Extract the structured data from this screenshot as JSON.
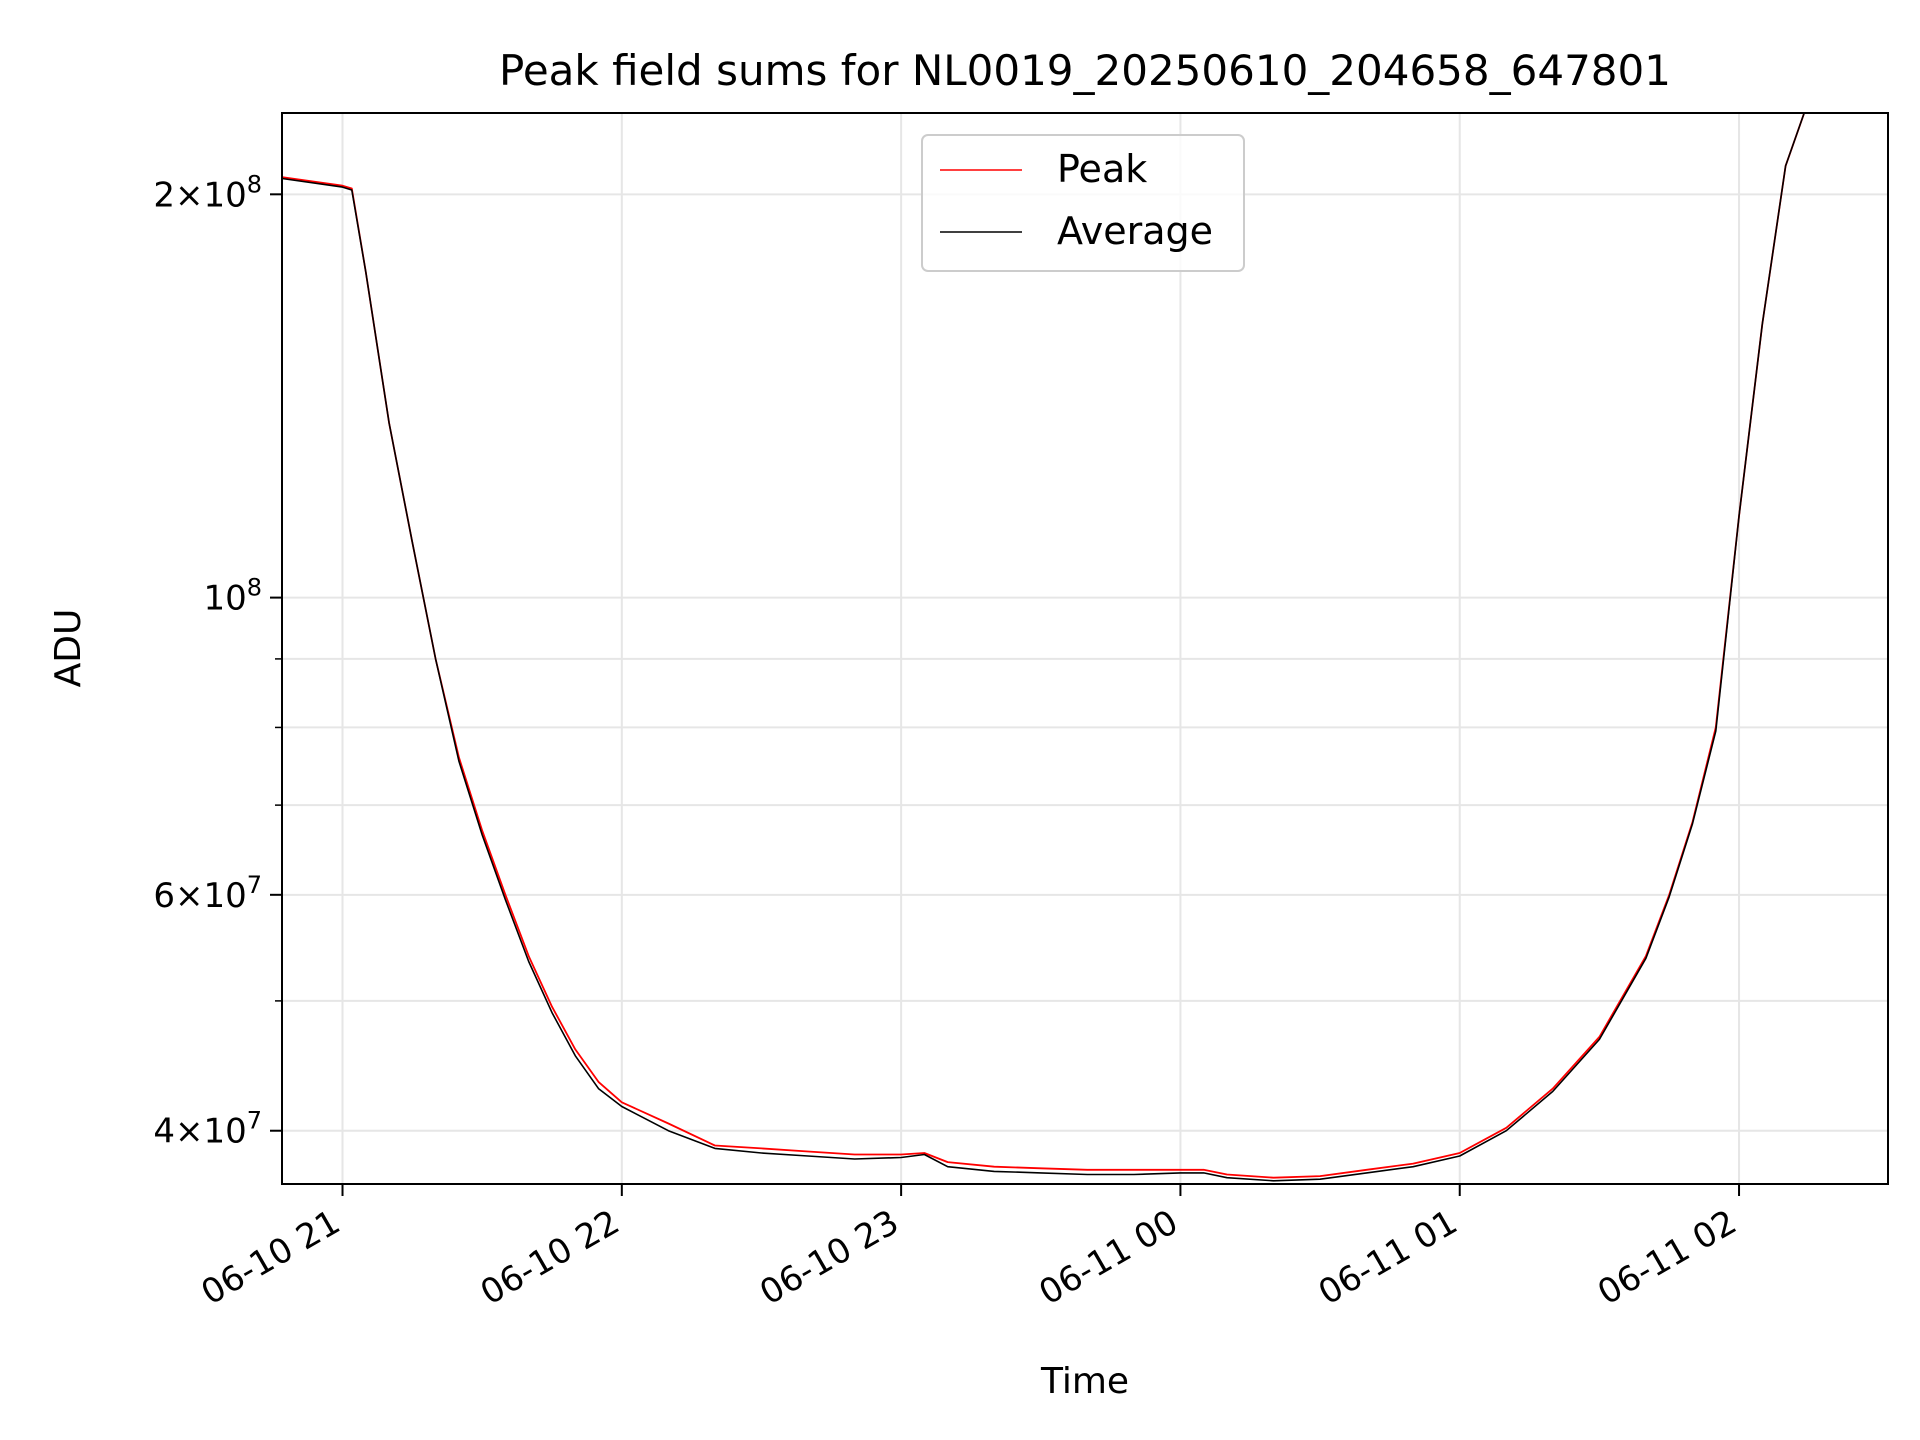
{
  "chart_data": {
    "type": "line",
    "title": "Peak field sums for NL0019_20250610_204658_647801",
    "xlabel": "Time",
    "ylabel": "ADU",
    "xscale": "time",
    "yscale": "log",
    "xlim": [
      "2025-06-10 20:47",
      "2025-06-11 02:32"
    ],
    "ylim": [
      36500000,
      230000000
    ],
    "grid": true,
    "legend": {
      "location": "upper center",
      "entries": [
        "Peak",
        "Average"
      ]
    },
    "xticks": [
      {
        "value": "2025-06-10 21:00",
        "label": "06-10 21"
      },
      {
        "value": "2025-06-10 22:00",
        "label": "06-10 22"
      },
      {
        "value": "2025-06-10 23:00",
        "label": "06-10 23"
      },
      {
        "value": "2025-06-11 00:00",
        "label": "06-11 00"
      },
      {
        "value": "2025-06-11 01:00",
        "label": "06-11 01"
      },
      {
        "value": "2025-06-11 02:00",
        "label": "06-11 02"
      }
    ],
    "yticks": [
      {
        "value": 40000000,
        "mantissa": "4",
        "exponent": "7"
      },
      {
        "value": 60000000,
        "mantissa": "6",
        "exponent": "7"
      },
      {
        "value": 100000000,
        "mantissa": "",
        "exponent": "8"
      },
      {
        "value": 200000000,
        "mantissa": "2",
        "exponent": "8"
      }
    ],
    "series": [
      {
        "name": "Peak",
        "color": "#ff0000",
        "x": [
          "2025-06-10 20:47",
          "2025-06-10 21:00",
          "2025-06-10 21:02",
          "2025-06-10 21:05",
          "2025-06-10 21:10",
          "2025-06-10 21:15",
          "2025-06-10 21:20",
          "2025-06-10 21:25",
          "2025-06-10 21:30",
          "2025-06-10 21:35",
          "2025-06-10 21:40",
          "2025-06-10 21:45",
          "2025-06-10 21:50",
          "2025-06-10 21:55",
          "2025-06-10 22:00",
          "2025-06-10 22:10",
          "2025-06-10 22:20",
          "2025-06-10 22:30",
          "2025-06-10 22:40",
          "2025-06-10 22:50",
          "2025-06-10 23:00",
          "2025-06-10 23:05",
          "2025-06-10 23:10",
          "2025-06-10 23:20",
          "2025-06-10 23:30",
          "2025-06-10 23:40",
          "2025-06-10 23:50",
          "2025-06-11 00:00",
          "2025-06-11 00:05",
          "2025-06-11 00:10",
          "2025-06-11 00:20",
          "2025-06-11 00:30",
          "2025-06-11 00:40",
          "2025-06-11 00:50",
          "2025-06-11 01:00",
          "2025-06-11 01:10",
          "2025-06-11 01:20",
          "2025-06-11 01:30",
          "2025-06-11 01:40",
          "2025-06-11 01:45",
          "2025-06-11 01:50",
          "2025-06-11 01:55",
          "2025-06-11 02:00",
          "2025-06-11 02:05",
          "2025-06-11 02:10",
          "2025-06-11 02:14"
        ],
        "y": [
          206000000,
          203000000,
          202000000,
          175000000,
          135000000,
          110000000,
          90000000,
          76000000,
          67000000,
          60000000,
          54000000,
          49500000,
          46000000,
          43500000,
          42000000,
          40500000,
          39000000,
          38800000,
          38600000,
          38400000,
          38400000,
          38500000,
          37900000,
          37600000,
          37500000,
          37400000,
          37400000,
          37400000,
          37400000,
          37100000,
          36900000,
          37000000,
          37400000,
          37800000,
          38500000,
          40200000,
          43000000,
          47000000,
          54000000,
          60000000,
          68000000,
          80000000,
          115000000,
          160000000,
          210000000,
          230000000
        ]
      },
      {
        "name": "Average",
        "color": "#000000",
        "x": [
          "2025-06-10 20:47",
          "2025-06-10 21:00",
          "2025-06-10 21:02",
          "2025-06-10 21:05",
          "2025-06-10 21:10",
          "2025-06-10 21:15",
          "2025-06-10 21:20",
          "2025-06-10 21:25",
          "2025-06-10 21:30",
          "2025-06-10 21:35",
          "2025-06-10 21:40",
          "2025-06-10 21:45",
          "2025-06-10 21:50",
          "2025-06-10 21:55",
          "2025-06-10 22:00",
          "2025-06-10 22:10",
          "2025-06-10 22:20",
          "2025-06-10 22:30",
          "2025-06-10 22:40",
          "2025-06-10 22:50",
          "2025-06-10 23:00",
          "2025-06-10 23:05",
          "2025-06-10 23:10",
          "2025-06-10 23:20",
          "2025-06-10 23:30",
          "2025-06-10 23:40",
          "2025-06-10 23:50",
          "2025-06-11 00:00",
          "2025-06-11 00:05",
          "2025-06-11 00:10",
          "2025-06-11 00:20",
          "2025-06-11 00:30",
          "2025-06-11 00:40",
          "2025-06-11 00:50",
          "2025-06-11 01:00",
          "2025-06-11 01:10",
          "2025-06-11 01:20",
          "2025-06-11 01:30",
          "2025-06-11 01:40",
          "2025-06-11 01:45",
          "2025-06-11 01:50",
          "2025-06-11 01:55",
          "2025-06-11 02:00",
          "2025-06-11 02:05",
          "2025-06-11 02:10",
          "2025-06-11 02:14"
        ],
        "y": [
          205500000,
          202500000,
          201500000,
          175000000,
          135000000,
          110000000,
          90000000,
          75500000,
          66500000,
          59500000,
          53500000,
          49000000,
          45500000,
          43000000,
          41700000,
          40000000,
          38800000,
          38500000,
          38300000,
          38100000,
          38200000,
          38400000,
          37600000,
          37300000,
          37200000,
          37100000,
          37100000,
          37200000,
          37200000,
          36900000,
          36700000,
          36800000,
          37200000,
          37600000,
          38300000,
          40000000,
          42800000,
          46800000,
          53800000,
          59800000,
          67800000,
          79500000,
          115000000,
          160000000,
          210000000,
          230000000
        ]
      }
    ]
  }
}
